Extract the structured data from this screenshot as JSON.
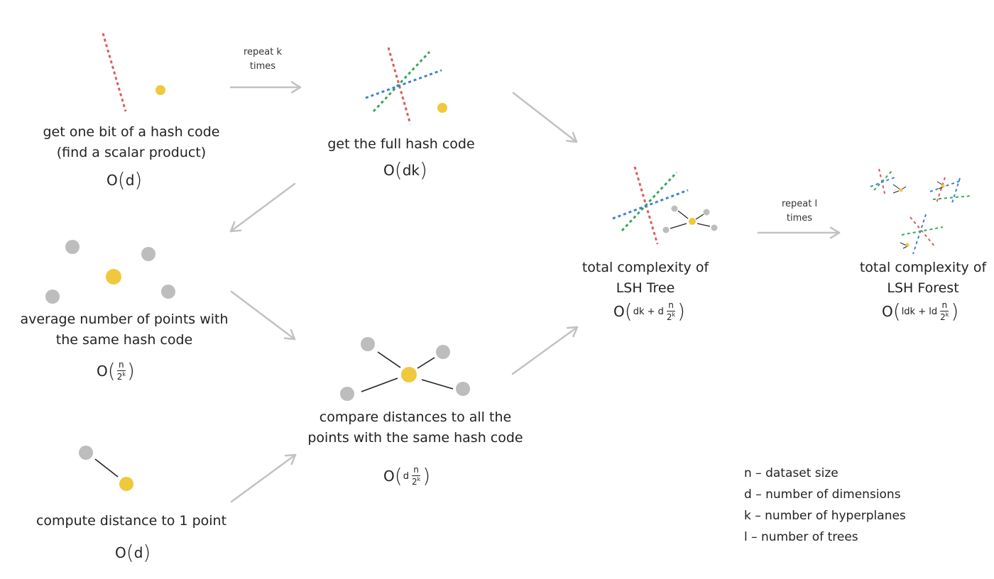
{
  "colors": {
    "arrow": "#c2c2c2",
    "point_gray": "#bdbdbd",
    "point_yellow": "#f0c83c",
    "line_red": "#e05a5a",
    "line_green": "#3aa55a",
    "line_blue": "#3b82d9",
    "edge": "#222222"
  },
  "steps": {
    "one_bit": {
      "label_line1": "get one bit of a hash code",
      "label_line2": "(find a scalar product)",
      "complexity": "d"
    },
    "full_hash": {
      "label": "get the full hash code",
      "complexity": "dk"
    },
    "avg_points": {
      "label_line1": "average number of points with",
      "label_line2": "the same hash code",
      "frac_num": "n",
      "frac_den_base": "2",
      "frac_den_exp": "k"
    },
    "compute_dist": {
      "label": "compute distance to 1 point",
      "complexity": "d"
    },
    "compare_dist": {
      "label_line1": "compare distances to all the",
      "label_line2": "points with the same hash code",
      "prefix": "d",
      "frac_num": "n",
      "frac_den_base": "2",
      "frac_den_exp": "k"
    },
    "lsh_tree": {
      "label_line1": "total complexity of",
      "label_line2": "LSH Tree",
      "prefix": "dk + d",
      "frac_num": "n",
      "frac_den_base": "2",
      "frac_den_exp": "k"
    },
    "lsh_forest": {
      "label_line1": "total complexity of",
      "label_line2": "LSH Forest",
      "prefix": "ldk + ld",
      "frac_num": "n",
      "frac_den_base": "2",
      "frac_den_exp": "k"
    }
  },
  "arrows": {
    "repeat_k_line1": "repeat k",
    "repeat_k_line2": "times",
    "repeat_l_line1": "repeat l",
    "repeat_l_line2": "times"
  },
  "big_o": "O",
  "legend": [
    "n – dataset size",
    "d – number of dimensions",
    "k – number of hyperplanes",
    "l – number of trees"
  ]
}
